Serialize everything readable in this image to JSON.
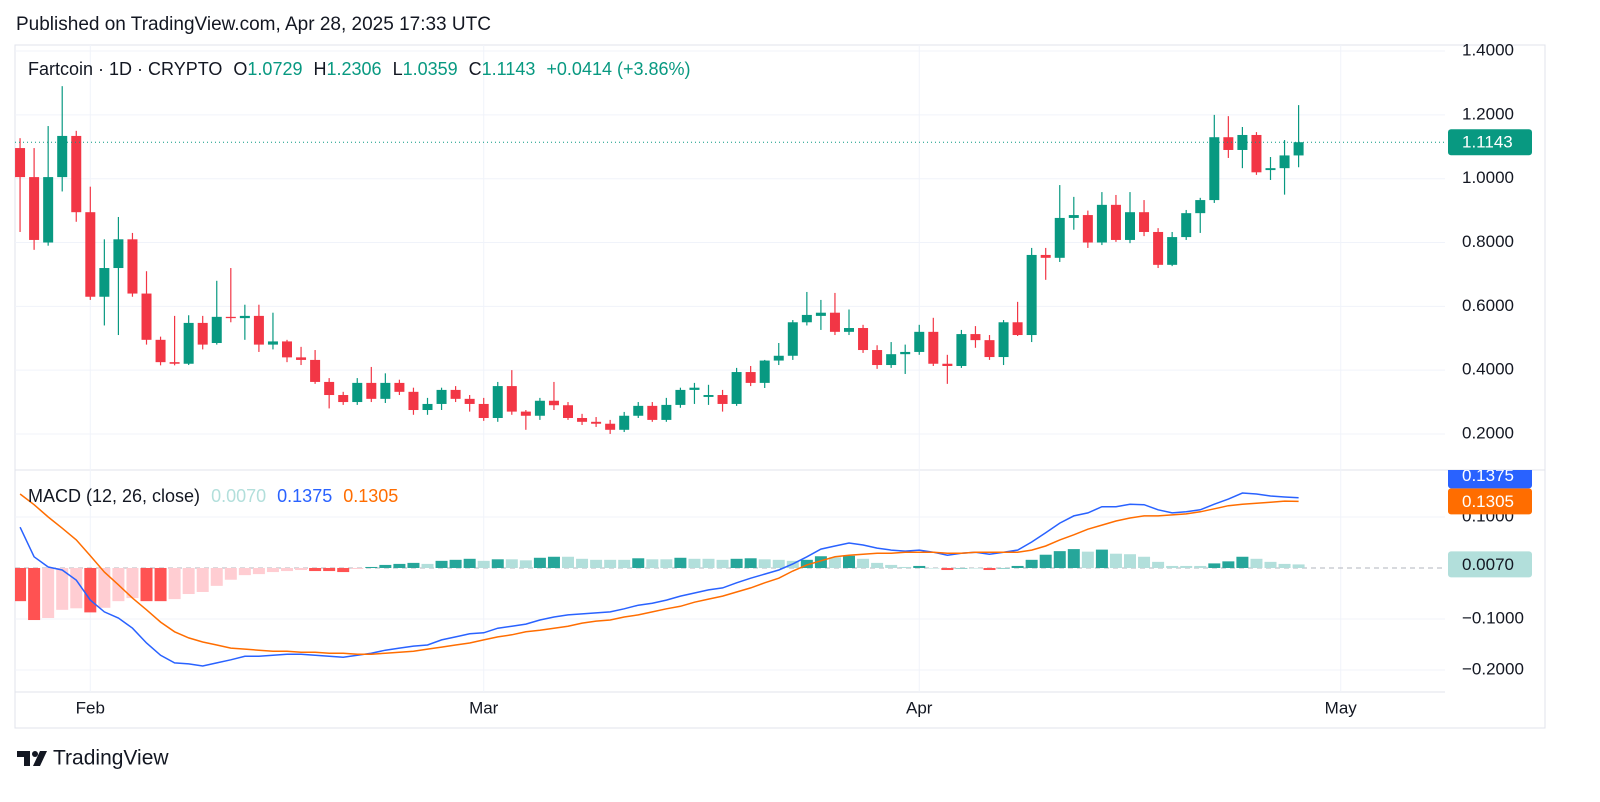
{
  "published": "Published on TradingView.com, Apr 28, 2025 17:33 UTC",
  "brand": "TradingView",
  "chart_data": [
    {
      "type": "candlestick",
      "title": "Fartcoin · 1D · CRYPTO",
      "legend_labels": [
        "O",
        "H",
        "L",
        "C"
      ],
      "change_label": "+0.0414 (+3.86%)",
      "up_color": "#089981",
      "down_color": "#f23645",
      "xlim": [
        -0.36,
        101.42
      ],
      "xticks": [
        {
          "value": 5,
          "label": "Feb"
        },
        {
          "value": 33,
          "label": "Mar"
        },
        {
          "value": 64,
          "label": "Apr"
        },
        {
          "value": 94,
          "label": "May"
        }
      ],
      "ylim": [
        0.087,
        1.419
      ],
      "yticks": [
        {
          "value": 1.4,
          "label": "1.4000"
        },
        {
          "value": 1.2,
          "label": "1.2000"
        },
        {
          "value": 1.0,
          "label": "1.0000"
        },
        {
          "value": 0.8,
          "label": "0.8000"
        },
        {
          "value": 0.6,
          "label": "0.6000"
        },
        {
          "value": 0.4,
          "label": "0.4000"
        },
        {
          "value": 0.2,
          "label": "0.2000"
        }
      ],
      "grid": true,
      "x": [
        0,
        1,
        2,
        3,
        4,
        5,
        6,
        7,
        8,
        9,
        10,
        11,
        12,
        13,
        14,
        15,
        16,
        17,
        18,
        19,
        20,
        21,
        22,
        23,
        24,
        25,
        26,
        27,
        28,
        29,
        30,
        31,
        32,
        33,
        34,
        35,
        36,
        37,
        38,
        39,
        40,
        41,
        42,
        43,
        44,
        45,
        46,
        47,
        48,
        49,
        50,
        51,
        52,
        53,
        54,
        55,
        56,
        57,
        58,
        59,
        60,
        61,
        62,
        63,
        64,
        65,
        66,
        67,
        68,
        69,
        70,
        71,
        72,
        73,
        74,
        75,
        76,
        77,
        78,
        79,
        80,
        81,
        82,
        83,
        84,
        85,
        86,
        87,
        88,
        89,
        90,
        91
      ],
      "open": [
        1.096,
        1.005,
        0.8,
        1.005,
        1.134,
        0.895,
        0.63,
        0.72,
        0.81,
        0.64,
        0.495,
        0.425,
        0.42,
        0.548,
        0.485,
        0.567,
        0.563,
        0.57,
        0.48,
        0.49,
        0.44,
        0.432,
        0.363,
        0.322,
        0.3,
        0.36,
        0.31,
        0.36,
        0.332,
        0.275,
        0.294,
        0.338,
        0.31,
        0.294,
        0.25,
        0.35,
        0.27,
        0.257,
        0.304,
        0.29,
        0.25,
        0.238,
        0.232,
        0.213,
        0.257,
        0.288,
        0.244,
        0.291,
        0.338,
        0.316,
        0.322,
        0.294,
        0.394,
        0.36,
        0.43,
        0.445,
        0.55,
        0.57,
        0.58,
        0.52,
        0.532,
        0.463,
        0.416,
        0.45,
        0.457,
        0.52,
        0.42,
        0.413,
        0.513,
        0.494,
        0.441,
        0.55,
        0.51,
        0.761,
        0.752,
        0.877,
        0.886,
        0.8,
        0.918,
        0.808,
        0.895,
        0.833,
        0.73,
        0.817,
        0.892,
        0.933,
        1.13,
        1.09,
        1.137,
        1.027,
        1.033,
        1.0729
      ],
      "high": [
        1.127,
        1.096,
        1.165,
        1.29,
        1.15,
        0.975,
        0.81,
        0.88,
        0.83,
        0.71,
        0.505,
        0.57,
        0.572,
        0.57,
        0.68,
        0.72,
        0.605,
        0.605,
        0.58,
        0.495,
        0.473,
        0.463,
        0.375,
        0.332,
        0.375,
        0.41,
        0.39,
        0.37,
        0.345,
        0.313,
        0.345,
        0.35,
        0.322,
        0.313,
        0.363,
        0.4,
        0.275,
        0.313,
        0.363,
        0.3,
        0.263,
        0.253,
        0.244,
        0.269,
        0.3,
        0.3,
        0.313,
        0.345,
        0.36,
        0.354,
        0.338,
        0.407,
        0.413,
        0.432,
        0.485,
        0.557,
        0.645,
        0.62,
        0.642,
        0.59,
        0.542,
        0.478,
        0.488,
        0.48,
        0.542,
        0.564,
        0.448,
        0.526,
        0.538,
        0.51,
        0.557,
        0.614,
        0.783,
        0.783,
        0.98,
        0.943,
        0.9,
        0.958,
        0.949,
        0.958,
        0.933,
        0.845,
        0.833,
        0.902,
        0.94,
        1.2,
        1.196,
        1.162,
        1.146,
        1.068,
        1.121,
        1.2306
      ],
      "low": [
        0.833,
        0.777,
        0.79,
        0.96,
        0.865,
        0.62,
        0.54,
        0.51,
        0.63,
        0.48,
        0.415,
        0.415,
        0.416,
        0.465,
        0.48,
        0.55,
        0.495,
        0.457,
        0.465,
        0.425,
        0.416,
        0.357,
        0.28,
        0.291,
        0.291,
        0.3,
        0.297,
        0.322,
        0.26,
        0.26,
        0.275,
        0.3,
        0.27,
        0.241,
        0.238,
        0.26,
        0.213,
        0.244,
        0.275,
        0.244,
        0.228,
        0.222,
        0.2,
        0.206,
        0.25,
        0.238,
        0.238,
        0.282,
        0.294,
        0.291,
        0.27,
        0.288,
        0.35,
        0.344,
        0.416,
        0.432,
        0.54,
        0.526,
        0.51,
        0.51,
        0.454,
        0.404,
        0.407,
        0.388,
        0.448,
        0.413,
        0.357,
        0.407,
        0.47,
        0.432,
        0.416,
        0.507,
        0.488,
        0.683,
        0.739,
        0.84,
        0.783,
        0.792,
        0.802,
        0.798,
        0.82,
        0.72,
        0.726,
        0.808,
        0.83,
        0.924,
        1.065,
        1.033,
        1.012,
        0.996,
        0.95,
        1.0359
      ],
      "close": [
        1.005,
        0.808,
        1.005,
        1.134,
        0.895,
        0.63,
        0.72,
        0.81,
        0.64,
        0.495,
        0.425,
        0.42,
        0.548,
        0.48,
        0.567,
        0.563,
        0.57,
        0.48,
        0.49,
        0.44,
        0.432,
        0.363,
        0.322,
        0.3,
        0.36,
        0.31,
        0.36,
        0.332,
        0.275,
        0.294,
        0.338,
        0.31,
        0.294,
        0.25,
        0.35,
        0.27,
        0.257,
        0.304,
        0.29,
        0.25,
        0.238,
        0.232,
        0.213,
        0.257,
        0.288,
        0.244,
        0.291,
        0.338,
        0.345,
        0.322,
        0.294,
        0.394,
        0.36,
        0.43,
        0.445,
        0.55,
        0.573,
        0.58,
        0.52,
        0.532,
        0.463,
        0.416,
        0.45,
        0.457,
        0.52,
        0.42,
        0.413,
        0.513,
        0.494,
        0.441,
        0.55,
        0.51,
        0.761,
        0.752,
        0.877,
        0.886,
        0.8,
        0.918,
        0.808,
        0.895,
        0.833,
        0.73,
        0.817,
        0.892,
        0.933,
        1.13,
        1.09,
        1.137,
        1.02,
        1.033,
        1.0729,
        1.1143
      ]
    },
    {
      "type": "macd",
      "title": "MACD (12, 26, close)",
      "ylim": [
        -0.243,
        0.192
      ],
      "yticks": [
        {
          "value": 0.1,
          "label": "0.1000"
        },
        {
          "value": -0.1,
          "label": "−0.1000"
        },
        {
          "value": -0.2,
          "label": "−0.2000"
        }
      ],
      "histogram": {
        "colors": {
          "grow_above": "#26a69a",
          "fall_above": "#b2dfdb",
          "grow_below": "#ffcdd2",
          "fall_below": "#ff5252"
        },
        "values": [
          -0.065,
          -0.102,
          -0.098,
          -0.082,
          -0.079,
          -0.087,
          -0.078,
          -0.065,
          -0.059,
          -0.065,
          -0.065,
          -0.061,
          -0.051,
          -0.047,
          -0.035,
          -0.023,
          -0.014,
          -0.012,
          -0.008,
          -0.006,
          -0.004,
          -0.006,
          -0.006,
          -0.008,
          -0.002,
          0.002,
          0.006,
          0.008,
          0.01,
          0.008,
          0.014,
          0.016,
          0.018,
          0.014,
          0.017,
          0.017,
          0.015,
          0.02,
          0.022,
          0.022,
          0.018,
          0.016,
          0.016,
          0.016,
          0.019,
          0.017,
          0.017,
          0.02,
          0.018,
          0.018,
          0.016,
          0.018,
          0.019,
          0.017,
          0.016,
          0.014,
          0.016,
          0.023,
          0.021,
          0.024,
          0.018,
          0.01,
          0.006,
          0.002,
          0.004,
          0,
          -0.004,
          0,
          0,
          -0.004,
          0,
          0.004,
          0.016,
          0.026,
          0.033,
          0.037,
          0.032,
          0.036,
          0.028,
          0.027,
          0.022,
          0.012,
          0.004,
          0.004,
          0.004,
          0.009,
          0.013,
          0.022,
          0.018,
          0.012,
          0.008,
          0.007
        ],
        "last_label": "0.0070"
      },
      "series": [
        {
          "color": "#2962ff",
          "last_label": "0.1375",
          "values": [
            0.08,
            0.022,
            0.002,
            -0.004,
            -0.024,
            -0.063,
            -0.086,
            -0.098,
            -0.118,
            -0.147,
            -0.171,
            -0.186,
            -0.188,
            -0.192,
            -0.186,
            -0.18,
            -0.173,
            -0.173,
            -0.171,
            -0.169,
            -0.169,
            -0.171,
            -0.173,
            -0.175,
            -0.171,
            -0.167,
            -0.161,
            -0.157,
            -0.153,
            -0.151,
            -0.141,
            -0.135,
            -0.129,
            -0.127,
            -0.118,
            -0.114,
            -0.11,
            -0.102,
            -0.096,
            -0.092,
            -0.09,
            -0.088,
            -0.086,
            -0.08,
            -0.073,
            -0.069,
            -0.063,
            -0.055,
            -0.049,
            -0.043,
            -0.039,
            -0.029,
            -0.02,
            -0.012,
            -0.004,
            0.008,
            0.022,
            0.037,
            0.043,
            0.049,
            0.045,
            0.039,
            0.035,
            0.033,
            0.035,
            0.031,
            0.025,
            0.029,
            0.031,
            0.027,
            0.031,
            0.035,
            0.051,
            0.069,
            0.088,
            0.102,
            0.108,
            0.12,
            0.12,
            0.125,
            0.124,
            0.114,
            0.108,
            0.11,
            0.114,
            0.125,
            0.135,
            0.147,
            0.145,
            0.141,
            0.139,
            0.1375
          ]
        },
        {
          "color": "#ff6d00",
          "last_label": "0.1305",
          "values": [
            0.145,
            0.124,
            0.1,
            0.078,
            0.055,
            0.024,
            -0.008,
            -0.033,
            -0.059,
            -0.082,
            -0.106,
            -0.125,
            -0.137,
            -0.145,
            -0.151,
            -0.157,
            -0.159,
            -0.161,
            -0.163,
            -0.163,
            -0.165,
            -0.165,
            -0.167,
            -0.167,
            -0.169,
            -0.169,
            -0.167,
            -0.165,
            -0.163,
            -0.159,
            -0.155,
            -0.151,
            -0.147,
            -0.141,
            -0.135,
            -0.131,
            -0.125,
            -0.122,
            -0.118,
            -0.114,
            -0.108,
            -0.104,
            -0.102,
            -0.096,
            -0.092,
            -0.086,
            -0.08,
            -0.075,
            -0.067,
            -0.061,
            -0.055,
            -0.047,
            -0.039,
            -0.029,
            -0.02,
            -0.006,
            0.006,
            0.014,
            0.022,
            0.025,
            0.027,
            0.029,
            0.029,
            0.031,
            0.031,
            0.031,
            0.029,
            0.029,
            0.031,
            0.031,
            0.031,
            0.031,
            0.035,
            0.043,
            0.055,
            0.065,
            0.076,
            0.084,
            0.092,
            0.098,
            0.102,
            0.102,
            0.104,
            0.106,
            0.11,
            0.116,
            0.122,
            0.125,
            0.127,
            0.129,
            0.131,
            0.1305
          ]
        }
      ]
    }
  ]
}
